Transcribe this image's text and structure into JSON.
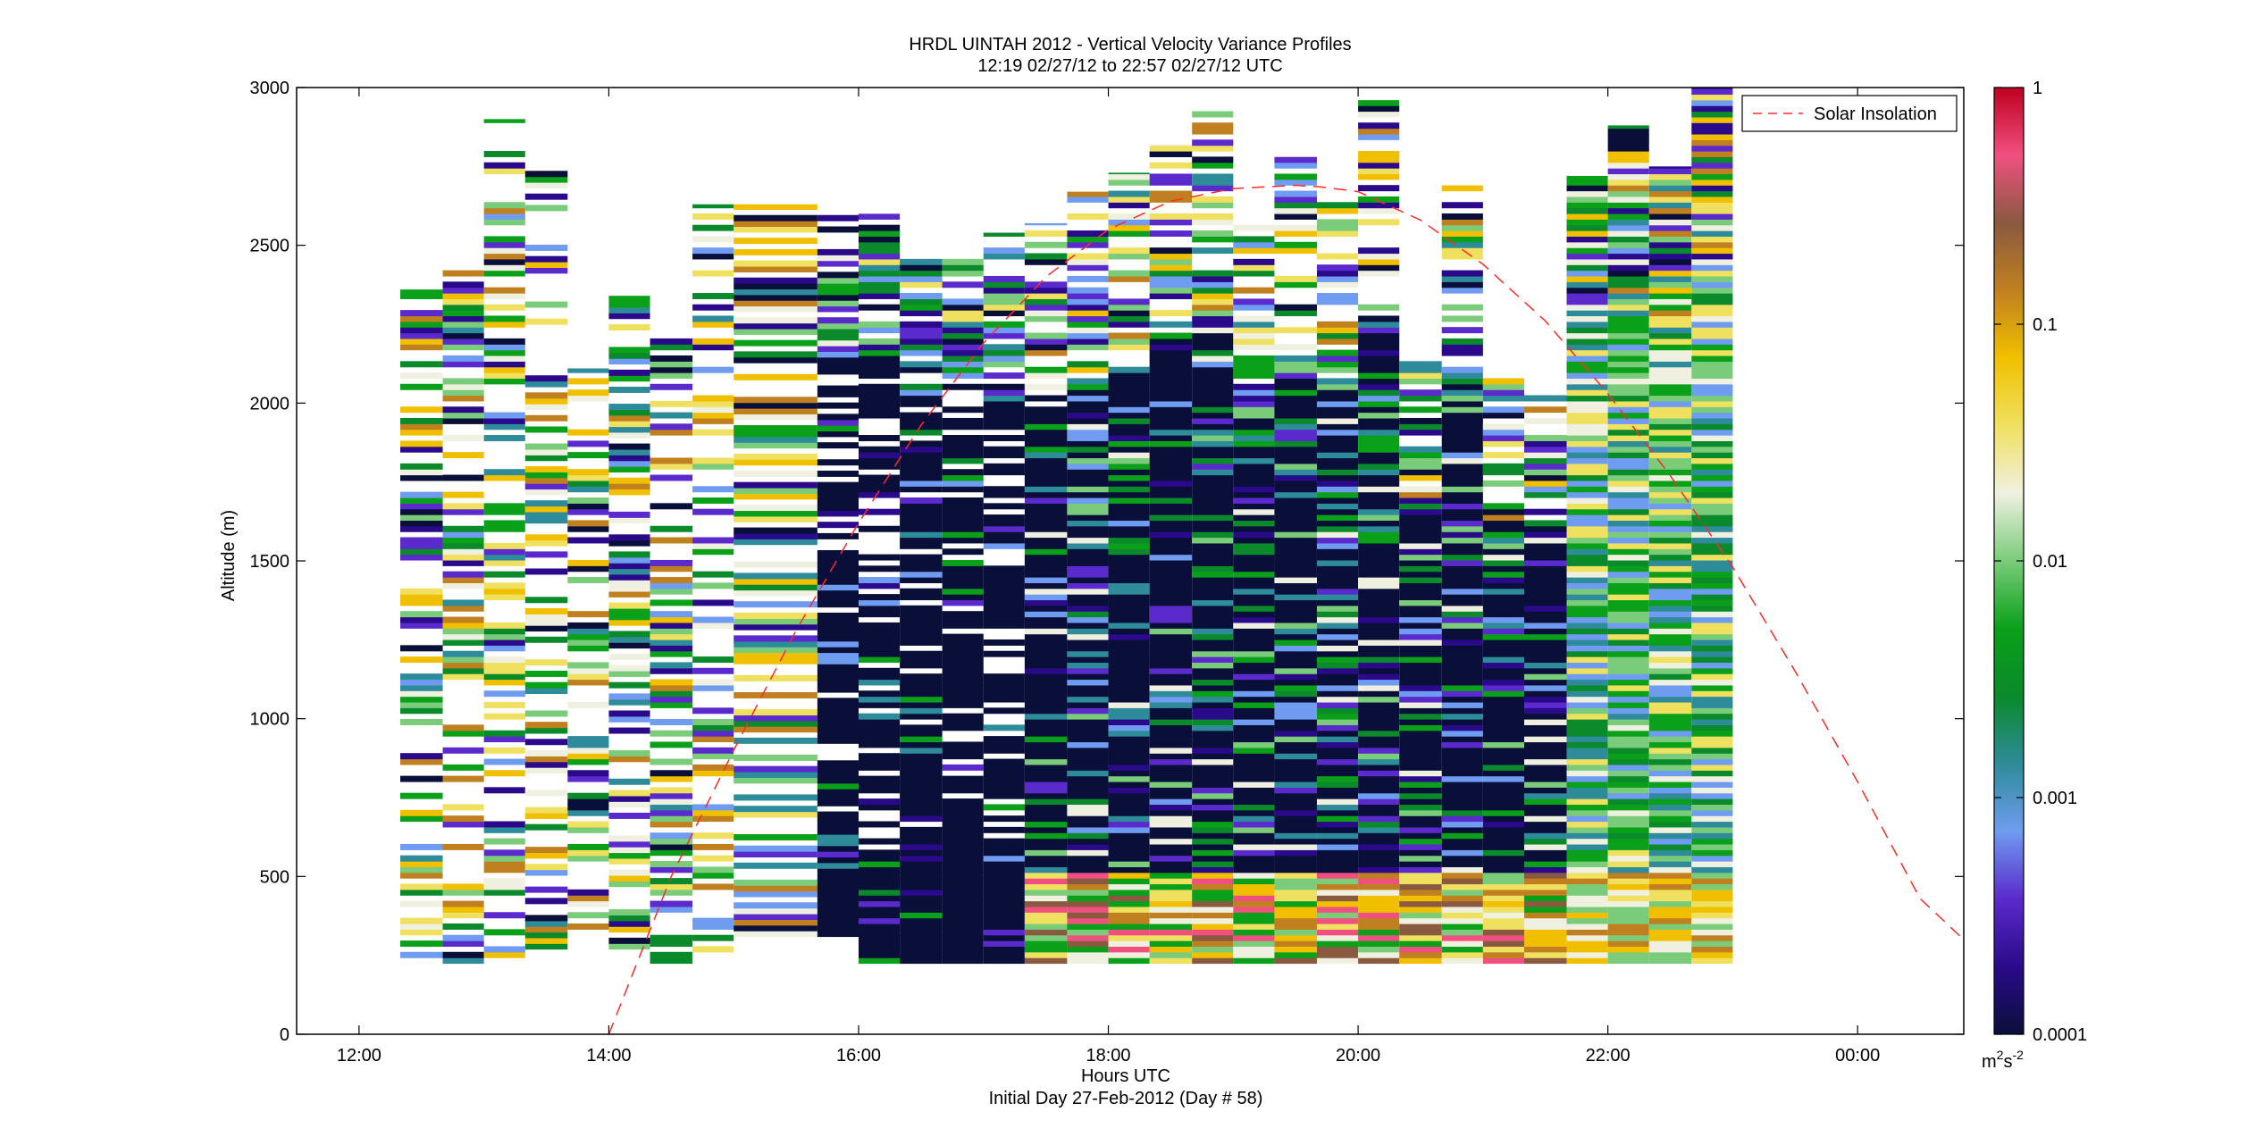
{
  "chart_data": {
    "type": "heatmap",
    "title": "HRDL UINTAH 2012 - Vertical Velocity Variance Profiles",
    "subtitle": "12:19 02/27/12 to 22:57 02/27/12  UTC",
    "xlabel": "Hours UTC",
    "xlabel2": "Initial Day 27-Feb-2012 (Day # 58)",
    "ylabel": "Altitude (m)",
    "x_range_hours": [
      11.5,
      24.85
    ],
    "ylim": [
      0,
      3000
    ],
    "x_ticks": [
      {
        "hour": 12,
        "label": "12:00"
      },
      {
        "hour": 14,
        "label": "14:00"
      },
      {
        "hour": 16,
        "label": "16:00"
      },
      {
        "hour": 18,
        "label": "18:00"
      },
      {
        "hour": 20,
        "label": "20:00"
      },
      {
        "hour": 22,
        "label": "22:00"
      },
      {
        "hour": 24,
        "label": "00:00"
      }
    ],
    "y_ticks": [
      0,
      500,
      1000,
      1500,
      2000,
      2500,
      3000
    ],
    "colorbar": {
      "scale": "log",
      "min": 0.0001,
      "max": 1,
      "ticks": [
        {
          "value": 1,
          "label": "1"
        },
        {
          "value": 0.1,
          "label": "0.1"
        },
        {
          "value": 0.01,
          "label": "0.01"
        },
        {
          "value": 0.001,
          "label": "0.001"
        },
        {
          "value": 0.0001,
          "label": "0.0001"
        }
      ],
      "unit_base": "m",
      "unit_sup1": "2",
      "unit_mid": "s",
      "unit_sup2": "-2",
      "stops": [
        "#0a0f3a",
        "#2a0a8a",
        "#5a2acc",
        "#6f9cf0",
        "#2e8b9a",
        "#0a8a2a",
        "#0aa01a",
        "#7acc7a",
        "#f0f0e0",
        "#f0e060",
        "#f0c000",
        "#c08020",
        "#8a5a40",
        "#f05080",
        "#c00020"
      ]
    },
    "columns": [
      {
        "t_start": 12.33,
        "t_end": 12.67,
        "z_bottom": 225,
        "z_top": 2360
      },
      {
        "t_start": 12.67,
        "t_end": 13.0,
        "z_bottom": 225,
        "z_top": 2450
      },
      {
        "t_start": 13.0,
        "t_end": 13.33,
        "z_bottom": 225,
        "z_top": 2900
      },
      {
        "t_start": 13.33,
        "t_end": 13.67,
        "z_bottom": 270,
        "z_top": 2750
      },
      {
        "t_start": 13.67,
        "t_end": 14.0,
        "z_bottom": 225,
        "z_top": 2110
      },
      {
        "t_start": 14.0,
        "t_end": 14.33,
        "z_bottom": 270,
        "z_top": 2360
      },
      {
        "t_start": 14.33,
        "t_end": 14.67,
        "z_bottom": 225,
        "z_top": 2220
      },
      {
        "t_start": 14.67,
        "t_end": 15.0,
        "z_bottom": 225,
        "z_top": 2630
      },
      {
        "t_start": 15.0,
        "t_end": 15.67,
        "z_bottom": 310,
        "z_top": 2630
      },
      {
        "t_start": 15.67,
        "t_end": 16.0,
        "z_bottom": 310,
        "z_top": 2600
      },
      {
        "t_start": 16.0,
        "t_end": 16.33,
        "z_bottom": 225,
        "z_top": 2600
      },
      {
        "t_start": 16.33,
        "t_end": 16.67,
        "z_bottom": 225,
        "z_top": 2460
      },
      {
        "t_start": 16.67,
        "t_end": 17.0,
        "z_bottom": 225,
        "z_top": 2460
      },
      {
        "t_start": 17.0,
        "t_end": 17.33,
        "z_bottom": 225,
        "z_top": 2540
      },
      {
        "t_start": 17.33,
        "t_end": 17.67,
        "z_bottom": 225,
        "z_top": 2570
      },
      {
        "t_start": 17.67,
        "t_end": 18.0,
        "z_bottom": 225,
        "z_top": 2670
      },
      {
        "t_start": 18.0,
        "t_end": 18.33,
        "z_bottom": 225,
        "z_top": 2730
      },
      {
        "t_start": 18.33,
        "t_end": 18.67,
        "z_bottom": 225,
        "z_top": 2820
      },
      {
        "t_start": 18.67,
        "t_end": 19.0,
        "z_bottom": 225,
        "z_top": 2930
      },
      {
        "t_start": 19.0,
        "t_end": 19.33,
        "z_bottom": 225,
        "z_top": 2580
      },
      {
        "t_start": 19.33,
        "t_end": 19.67,
        "z_bottom": 225,
        "z_top": 2780
      },
      {
        "t_start": 19.67,
        "t_end": 20.0,
        "z_bottom": 225,
        "z_top": 2640
      },
      {
        "t_start": 20.0,
        "t_end": 20.33,
        "z_bottom": 225,
        "z_top": 2960
      },
      {
        "t_start": 20.33,
        "t_end": 20.67,
        "z_bottom": 225,
        "z_top": 2150
      },
      {
        "t_start": 20.67,
        "t_end": 21.0,
        "z_bottom": 225,
        "z_top": 2690
      },
      {
        "t_start": 21.0,
        "t_end": 21.33,
        "z_bottom": 225,
        "z_top": 2090
      },
      {
        "t_start": 21.33,
        "t_end": 21.67,
        "z_bottom": 225,
        "z_top": 2060
      },
      {
        "t_start": 21.67,
        "t_end": 22.0,
        "z_bottom": 225,
        "z_top": 2720
      },
      {
        "t_start": 22.0,
        "t_end": 22.33,
        "z_bottom": 225,
        "z_top": 2880
      },
      {
        "t_start": 22.33,
        "t_end": 22.67,
        "z_bottom": 225,
        "z_top": 2750
      },
      {
        "t_start": 22.67,
        "t_end": 23.0,
        "z_bottom": 225,
        "z_top": 3000
      }
    ],
    "series": [
      {
        "name": "Solar Insolation",
        "style": "dashed",
        "color": "#ff2a2a",
        "x_hours": [
          14.0,
          14.5,
          15.0,
          15.5,
          16.0,
          16.5,
          17.0,
          17.5,
          18.0,
          18.5,
          19.0,
          19.5,
          19.7,
          20.0,
          20.5,
          21.0,
          21.5,
          22.0,
          22.5,
          23.0,
          23.5,
          24.0,
          24.5,
          24.85
        ],
        "altitude_equiv": [
          0,
          500,
          900,
          1280,
          1620,
          1930,
          2190,
          2400,
          2550,
          2640,
          2680,
          2690,
          2685,
          2670,
          2580,
          2440,
          2260,
          2030,
          1770,
          1480,
          1150,
          800,
          430,
          300
        ]
      }
    ],
    "legend": {
      "position": "top-right",
      "entries": [
        "Solar Insolation"
      ]
    }
  }
}
